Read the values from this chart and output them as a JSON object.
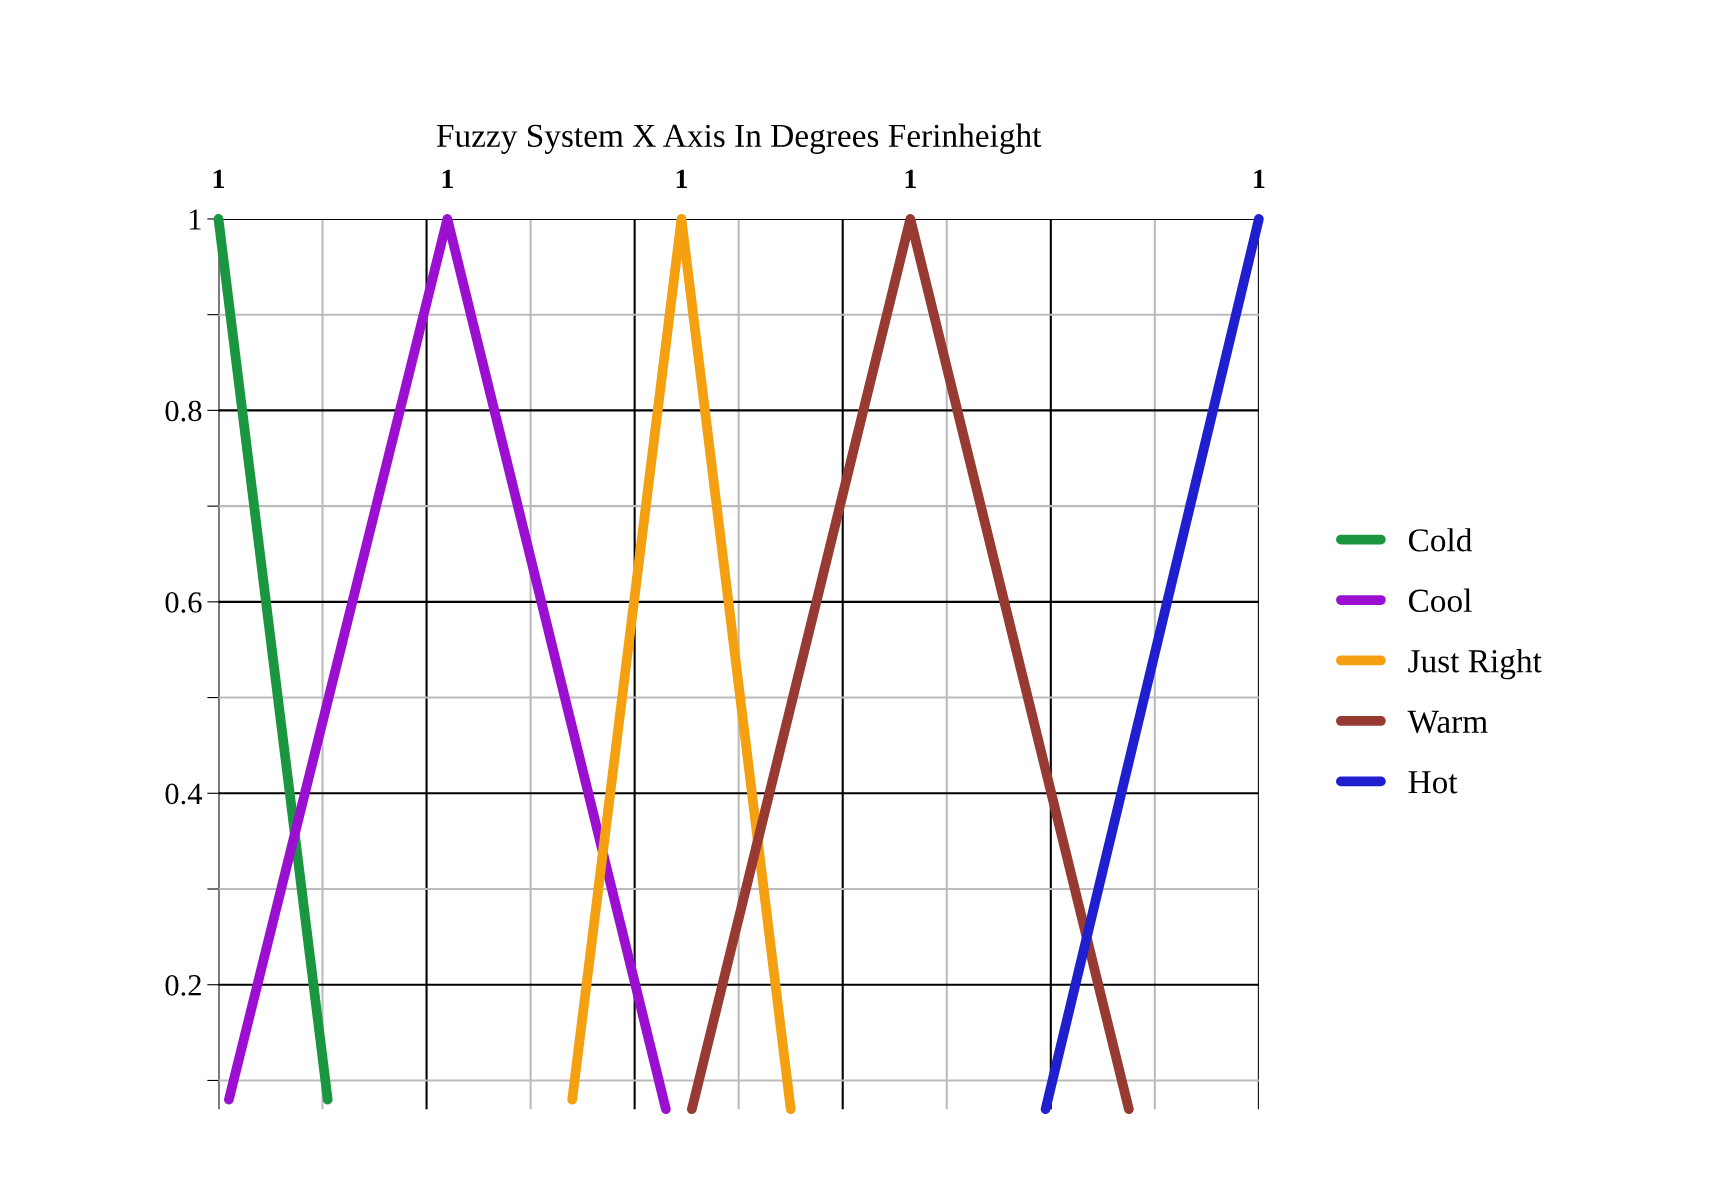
{
  "chart_data": {
    "type": "line",
    "title": "Fuzzy System X Axis In Degrees Ferinheight",
    "categories": [
      null,
      null,
      null,
      null,
      null,
      null,
      null,
      null,
      null,
      null,
      null,
      null,
      null,
      null,
      null,
      null,
      null,
      null,
      null,
      null,
      null,
      null,
      null,
      null,
      null,
      null,
      null,
      null,
      null,
      null,
      null,
      null,
      null,
      null,
      null,
      null,
      null,
      null,
      null,
      null,
      null,
      null,
      null,
      null,
      null,
      null,
      null,
      null,
      null,
      null,
      null,
      null,
      null,
      null,
      null,
      null,
      null,
      null,
      null,
      null,
      null,
      null,
      null,
      null,
      null,
      null,
      null,
      null,
      null,
      null,
      null,
      null,
      null,
      null,
      null,
      null,
      null,
      null,
      null,
      null,
      null,
      null,
      null,
      null,
      null,
      null,
      null,
      null,
      null,
      null,
      null,
      null,
      null,
      null,
      null,
      null,
      null,
      null,
      null,
      null,
      null,
      null,
      null,
      null,
      null,
      null,
      null,
      null,
      null,
      null,
      null,
      null,
      null,
      null,
      null,
      null,
      null,
      null,
      null,
      null,
      null,
      null,
      null,
      null,
      null,
      null,
      null,
      null,
      null,
      null,
      null,
      null,
      null,
      null,
      null,
      null,
      null,
      null,
      null,
      null,
      null,
      null,
      null,
      null,
      null,
      null,
      null,
      null,
      null,
      null,
      null,
      null,
      null,
      null,
      null,
      null,
      null,
      null,
      null,
      null,
      null,
      null,
      null,
      null,
      null,
      null,
      null,
      null,
      null,
      null,
      null,
      null,
      null,
      null,
      null,
      null,
      null,
      null,
      null,
      null,
      null,
      null,
      null,
      null,
      null,
      null,
      null,
      null,
      null,
      null,
      null,
      null,
      null,
      null,
      null,
      null,
      null,
      null,
      null,
      null,
      null
    ],
    "ylim": [
      0.07,
      1
    ],
    "yticks": [
      {
        "value": 0.1,
        "label": null
      },
      0.2,
      {
        "value": 0.3,
        "label": null
      },
      0.4,
      {
        "value": 0.5,
        "label": null
      },
      0.6,
      {
        "value": 0.7,
        "label": null
      },
      0.8,
      {
        "value": 0.9,
        "label": null
      },
      1
    ],
    "grid": true,
    "legend": "right",
    "marker": "none",
    "line_style": "solid",
    "series": [
      {
        "name": "Cold",
        "color": "#1a9641",
        "values": [
          1,
          null,
          null,
          null,
          null,
          null,
          null,
          null,
          null,
          null,
          null,
          null,
          null,
          null,
          null,
          null,
          null,
          null,
          null,
          null,
          null,
          0.08,
          null,
          null,
          null,
          null,
          null,
          null,
          null,
          null,
          null,
          null,
          null,
          null,
          null,
          null,
          null,
          null,
          null,
          null,
          null,
          null,
          null,
          null,
          null,
          null,
          null,
          null,
          null,
          null,
          null,
          null,
          null,
          null,
          null,
          null,
          null,
          null,
          null,
          null,
          null,
          null,
          null,
          null,
          null,
          null,
          null,
          null,
          null,
          null,
          null,
          null,
          null,
          null,
          null,
          null,
          null,
          null,
          null,
          null,
          null,
          null,
          null,
          null,
          null,
          null,
          null,
          null,
          null,
          null,
          null,
          null,
          null,
          null,
          null,
          null,
          null,
          null,
          null,
          null,
          null,
          null,
          null,
          null,
          null,
          null,
          null,
          null,
          null,
          null,
          null,
          null,
          null,
          null,
          null,
          null,
          null,
          null,
          null,
          null,
          null,
          null,
          null,
          null,
          null,
          null,
          null,
          null,
          null,
          null,
          null,
          null,
          null,
          null,
          null,
          null,
          null,
          null,
          null,
          null,
          null,
          null,
          null,
          null,
          null,
          null,
          null,
          null,
          null,
          null,
          null,
          null,
          null,
          null,
          null,
          null,
          null,
          null,
          null,
          null,
          null,
          null,
          null,
          null,
          null,
          null,
          null,
          null,
          null,
          null,
          null,
          null,
          null,
          null,
          null,
          null,
          null,
          null,
          null,
          null,
          null,
          null,
          null,
          null,
          null,
          null,
          null,
          null,
          null,
          null,
          null,
          null,
          null,
          null,
          null,
          null,
          null,
          null,
          null,
          null,
          null
        ],
        "value_labels": [
          "1",
          null,
          null,
          null,
          null,
          null,
          null,
          null,
          null,
          null,
          null,
          null,
          null,
          null,
          null,
          null,
          null,
          null,
          null,
          null,
          null,
          null,
          null,
          null,
          null,
          null,
          null,
          null,
          null,
          null,
          null,
          null,
          null,
          null,
          null,
          null,
          null,
          null,
          null,
          null,
          null,
          null,
          null,
          null,
          null,
          null,
          null,
          null,
          null,
          null,
          null,
          null,
          null,
          null,
          null,
          null,
          null,
          null,
          null,
          null,
          null,
          null,
          null,
          null,
          null,
          null,
          null,
          null,
          null,
          null,
          null,
          null,
          null,
          null,
          null,
          null,
          null,
          null,
          null,
          null,
          null,
          null,
          null,
          null,
          null,
          null,
          null,
          null,
          null,
          null,
          null,
          null,
          null,
          null,
          null,
          null,
          null,
          null,
          null,
          null,
          null,
          null,
          null,
          null,
          null,
          null,
          null,
          null,
          null,
          null,
          null,
          null,
          null,
          null,
          null,
          null,
          null,
          null,
          null,
          null,
          null,
          null,
          null,
          null,
          null,
          null,
          null,
          null,
          null,
          null,
          null,
          null,
          null,
          null,
          null,
          null,
          null,
          null,
          null,
          null,
          null,
          null,
          null,
          null,
          null,
          null,
          null,
          null,
          null,
          null,
          null,
          null,
          null,
          null,
          null,
          null,
          null,
          null,
          null,
          null,
          null,
          null,
          null,
          null,
          null,
          null,
          null,
          null,
          null,
          null,
          null,
          null,
          null,
          null,
          null,
          null,
          null,
          null,
          null,
          null,
          null,
          null,
          null,
          null,
          null,
          null,
          null,
          null,
          null,
          null,
          null,
          null,
          null,
          null,
          null,
          null,
          null,
          null,
          null,
          null,
          null
        ]
      },
      {
        "name": "Cool",
        "color": "#9b10d0",
        "values": [
          null,
          null,
          0.08,
          null,
          null,
          null,
          null,
          null,
          null,
          null,
          null,
          null,
          null,
          null,
          null,
          null,
          null,
          null,
          null,
          null,
          null,
          null,
          null,
          null,
          null,
          null,
          null,
          null,
          null,
          null,
          null,
          null,
          null,
          null,
          null,
          null,
          null,
          null,
          null,
          null,
          null,
          null,
          null,
          null,
          1,
          null,
          null,
          null,
          null,
          null,
          null,
          null,
          null,
          null,
          null,
          null,
          null,
          null,
          null,
          null,
          null,
          null,
          null,
          null,
          null,
          null,
          null,
          null,
          null,
          null,
          null,
          null,
          null,
          null,
          null,
          null,
          null,
          null,
          null,
          null,
          null,
          null,
          null,
          null,
          null,
          null,
          0.07,
          null,
          null,
          null,
          null,
          null,
          null,
          null,
          null,
          null,
          null,
          null,
          null,
          null,
          null,
          null,
          null,
          null,
          null,
          null,
          null,
          null,
          null,
          null,
          null,
          null,
          null,
          null,
          null,
          null,
          null,
          null,
          null,
          null,
          null,
          null,
          null,
          null,
          null,
          null,
          null,
          null,
          null,
          null,
          null,
          null,
          null,
          null,
          null,
          null,
          null,
          null,
          null,
          null,
          null,
          null,
          null,
          null,
          null,
          null,
          null,
          null,
          null,
          null,
          null,
          null,
          null,
          null,
          null,
          null,
          null,
          null,
          null,
          null,
          null,
          null,
          null,
          null,
          null,
          null,
          null,
          null,
          null,
          null,
          null,
          null,
          null,
          null,
          null,
          null,
          null,
          null,
          null,
          null,
          null,
          null,
          null,
          null,
          null,
          null,
          null,
          null,
          null,
          null,
          null,
          null,
          null,
          null,
          null,
          null,
          null,
          null,
          null,
          null,
          null
        ],
        "value_labels": [
          null,
          null,
          null,
          null,
          null,
          null,
          null,
          null,
          null,
          null,
          null,
          null,
          null,
          null,
          null,
          null,
          null,
          null,
          null,
          null,
          null,
          null,
          null,
          null,
          null,
          null,
          null,
          null,
          null,
          null,
          null,
          null,
          null,
          null,
          null,
          null,
          null,
          null,
          null,
          null,
          null,
          null,
          null,
          null,
          "1",
          null,
          null,
          null,
          null,
          null,
          null,
          null,
          null,
          null,
          null,
          null,
          null,
          null,
          null,
          null,
          null,
          null,
          null,
          null,
          null,
          null,
          null,
          null,
          null,
          null,
          null,
          null,
          null,
          null,
          null,
          null,
          null,
          null,
          null,
          null,
          null,
          null,
          null,
          null,
          null,
          null,
          null,
          null,
          null,
          null,
          null,
          null,
          null,
          null,
          null,
          null,
          null,
          null,
          null,
          null,
          null,
          null,
          null,
          null,
          null,
          null,
          null,
          null,
          null,
          null,
          null,
          null,
          null,
          null,
          null,
          null,
          null,
          null,
          null,
          null,
          null,
          null,
          null,
          null,
          null,
          null,
          null,
          null,
          null,
          null,
          null,
          null,
          null,
          null,
          null,
          null,
          null,
          null,
          null,
          null,
          null,
          null,
          null,
          null,
          null,
          null,
          null,
          null,
          null,
          null,
          null,
          null,
          null,
          null,
          null,
          null,
          null,
          null,
          null,
          null,
          null,
          null,
          null,
          null,
          null,
          null,
          null,
          null,
          null,
          null,
          null,
          null,
          null,
          null,
          null,
          null,
          null,
          null,
          null,
          null,
          null,
          null,
          null,
          null,
          null,
          null,
          null,
          null,
          null,
          null,
          null,
          null,
          null,
          null,
          null,
          null,
          null,
          null,
          null,
          null,
          null
        ]
      },
      {
        "name": "Just Right",
        "color": "#f5a011",
        "values": [
          null,
          null,
          null,
          null,
          null,
          null,
          null,
          null,
          null,
          null,
          null,
          null,
          null,
          null,
          null,
          null,
          null,
          null,
          null,
          null,
          null,
          null,
          null,
          null,
          null,
          null,
          null,
          null,
          null,
          null,
          null,
          null,
          null,
          null,
          null,
          null,
          null,
          null,
          null,
          null,
          null,
          null,
          null,
          null,
          null,
          null,
          null,
          null,
          null,
          null,
          null,
          null,
          null,
          null,
          null,
          null,
          null,
          null,
          null,
          null,
          null,
          null,
          null,
          null,
          null,
          null,
          null,
          null,
          0.08,
          null,
          null,
          null,
          null,
          null,
          null,
          null,
          null,
          null,
          null,
          null,
          null,
          null,
          null,
          null,
          null,
          null,
          null,
          null,
          null,
          1,
          null,
          null,
          null,
          null,
          null,
          null,
          null,
          null,
          null,
          null,
          null,
          null,
          null,
          null,
          null,
          null,
          null,
          null,
          null,
          null,
          0.07,
          null,
          null,
          null,
          null,
          null,
          null,
          null,
          null,
          null,
          null,
          null,
          null,
          null,
          null,
          null,
          null,
          null,
          null,
          null,
          null,
          null,
          null,
          null,
          null,
          null,
          null,
          null,
          null,
          null,
          null,
          null,
          null,
          null,
          null,
          null,
          null,
          null,
          null,
          null,
          null,
          null,
          null,
          null,
          null,
          null,
          null,
          null,
          null,
          null,
          null,
          null,
          null,
          null,
          null,
          null,
          null,
          null,
          null,
          null,
          null,
          null,
          null,
          null,
          null,
          null,
          null,
          null,
          null,
          null,
          null,
          null,
          null,
          null,
          null,
          null,
          null,
          null,
          null,
          null,
          null,
          null,
          null,
          null,
          null,
          null,
          null,
          null,
          null,
          null,
          null
        ],
        "value_labels": [
          null,
          null,
          null,
          null,
          null,
          null,
          null,
          null,
          null,
          null,
          null,
          null,
          null,
          null,
          null,
          null,
          null,
          null,
          null,
          null,
          null,
          null,
          null,
          null,
          null,
          null,
          null,
          null,
          null,
          null,
          null,
          null,
          null,
          null,
          null,
          null,
          null,
          null,
          null,
          null,
          null,
          null,
          null,
          null,
          null,
          null,
          null,
          null,
          null,
          null,
          null,
          null,
          null,
          null,
          null,
          null,
          null,
          null,
          null,
          null,
          null,
          null,
          null,
          null,
          null,
          null,
          null,
          null,
          null,
          null,
          null,
          null,
          null,
          null,
          null,
          null,
          null,
          null,
          null,
          null,
          null,
          null,
          null,
          null,
          null,
          null,
          null,
          null,
          null,
          "1",
          null,
          null,
          null,
          null,
          null,
          null,
          null,
          null,
          null,
          null,
          null,
          null,
          null,
          null,
          null,
          null,
          null,
          null,
          null,
          null,
          null,
          null,
          null,
          null,
          null,
          null,
          null,
          null,
          null,
          null,
          null,
          null,
          null,
          null,
          null,
          null,
          null,
          null,
          null,
          null,
          null,
          null,
          null,
          null,
          null,
          null,
          null,
          null,
          null,
          null,
          null,
          null,
          null,
          null,
          null,
          null,
          null,
          null,
          null,
          null,
          null,
          null,
          null,
          null,
          null,
          null,
          null,
          null,
          null,
          null,
          null,
          null,
          null,
          null,
          null,
          null,
          null,
          null,
          null,
          null,
          null,
          null,
          null,
          null,
          null,
          null,
          null,
          null,
          null,
          null,
          null,
          null,
          null,
          null,
          null,
          null,
          null,
          null,
          null,
          null,
          null,
          null,
          null,
          null,
          null,
          null,
          null,
          null,
          null,
          null,
          null
        ]
      },
      {
        "name": "Warm",
        "color": "#963a32",
        "values": [
          null,
          null,
          null,
          null,
          null,
          null,
          null,
          null,
          null,
          null,
          null,
          null,
          null,
          null,
          null,
          null,
          null,
          null,
          null,
          null,
          null,
          null,
          null,
          null,
          null,
          null,
          null,
          null,
          null,
          null,
          null,
          null,
          null,
          null,
          null,
          null,
          null,
          null,
          null,
          null,
          null,
          null,
          null,
          null,
          null,
          null,
          null,
          null,
          null,
          null,
          null,
          null,
          null,
          null,
          null,
          null,
          null,
          null,
          null,
          null,
          null,
          null,
          null,
          null,
          null,
          null,
          null,
          null,
          null,
          null,
          null,
          null,
          null,
          null,
          null,
          null,
          null,
          null,
          null,
          null,
          null,
          null,
          null,
          null,
          null,
          null,
          null,
          null,
          null,
          null,
          null,
          0.07,
          null,
          null,
          null,
          null,
          null,
          null,
          null,
          null,
          null,
          null,
          null,
          null,
          null,
          null,
          null,
          null,
          null,
          null,
          null,
          null,
          null,
          null,
          null,
          null,
          null,
          null,
          null,
          null,
          null,
          null,
          null,
          null,
          null,
          null,
          null,
          null,
          null,
          null,
          null,
          null,
          null,
          1,
          null,
          null,
          null,
          null,
          null,
          null,
          null,
          null,
          null,
          null,
          null,
          null,
          null,
          null,
          null,
          null,
          null,
          null,
          null,
          null,
          null,
          null,
          null,
          null,
          null,
          null,
          null,
          null,
          null,
          null,
          null,
          null,
          null,
          null,
          null,
          null,
          null,
          null,
          null,
          null,
          null,
          0.07,
          null,
          null,
          null,
          null,
          null,
          null,
          null,
          null,
          null,
          null,
          null,
          null,
          null,
          null,
          null,
          null,
          null,
          null,
          null,
          null,
          null,
          null,
          null,
          null,
          null
        ],
        "value_labels": [
          null,
          null,
          null,
          null,
          null,
          null,
          null,
          null,
          null,
          null,
          null,
          null,
          null,
          null,
          null,
          null,
          null,
          null,
          null,
          null,
          null,
          null,
          null,
          null,
          null,
          null,
          null,
          null,
          null,
          null,
          null,
          null,
          null,
          null,
          null,
          null,
          null,
          null,
          null,
          null,
          null,
          null,
          null,
          null,
          null,
          null,
          null,
          null,
          null,
          null,
          null,
          null,
          null,
          null,
          null,
          null,
          null,
          null,
          null,
          null,
          null,
          null,
          null,
          null,
          null,
          null,
          null,
          null,
          null,
          null,
          null,
          null,
          null,
          null,
          null,
          null,
          null,
          null,
          null,
          null,
          null,
          null,
          null,
          null,
          null,
          null,
          null,
          null,
          null,
          null,
          null,
          null,
          null,
          null,
          null,
          null,
          null,
          null,
          null,
          null,
          null,
          null,
          null,
          null,
          null,
          null,
          null,
          null,
          null,
          null,
          null,
          null,
          null,
          null,
          null,
          null,
          null,
          null,
          null,
          null,
          null,
          null,
          null,
          null,
          null,
          null,
          null,
          null,
          null,
          null,
          null,
          null,
          null,
          "1",
          null,
          null,
          null,
          null,
          null,
          null,
          null,
          null,
          null,
          null,
          null,
          null,
          null,
          null,
          null,
          null,
          null,
          null,
          null,
          null,
          null,
          null,
          null,
          null,
          null,
          null,
          null,
          null,
          null,
          null,
          null,
          null,
          null,
          null,
          null,
          null,
          null,
          null,
          null,
          null,
          null,
          null,
          null,
          null,
          null,
          null,
          null,
          null,
          null,
          null,
          null,
          null,
          null,
          null,
          null,
          null,
          null,
          null,
          null,
          null,
          null,
          null,
          null,
          null,
          null,
          null,
          null
        ]
      },
      {
        "name": "Hot",
        "color": "#1f1fd0",
        "values": [
          null,
          null,
          null,
          null,
          null,
          null,
          null,
          null,
          null,
          null,
          null,
          null,
          null,
          null,
          null,
          null,
          null,
          null,
          null,
          null,
          null,
          null,
          null,
          null,
          null,
          null,
          null,
          null,
          null,
          null,
          null,
          null,
          null,
          null,
          null,
          null,
          null,
          null,
          null,
          null,
          null,
          null,
          null,
          null,
          null,
          null,
          null,
          null,
          null,
          null,
          null,
          null,
          null,
          null,
          null,
          null,
          null,
          null,
          null,
          null,
          null,
          null,
          null,
          null,
          null,
          null,
          null,
          null,
          null,
          null,
          null,
          null,
          null,
          null,
          null,
          null,
          null,
          null,
          null,
          null,
          null,
          null,
          null,
          null,
          null,
          null,
          null,
          null,
          null,
          null,
          null,
          null,
          null,
          null,
          null,
          null,
          null,
          null,
          null,
          null,
          null,
          null,
          null,
          null,
          null,
          null,
          null,
          null,
          null,
          null,
          null,
          null,
          null,
          null,
          null,
          null,
          null,
          null,
          null,
          null,
          null,
          null,
          null,
          null,
          null,
          null,
          null,
          null,
          null,
          null,
          null,
          null,
          null,
          null,
          null,
          null,
          null,
          null,
          null,
          null,
          null,
          null,
          null,
          null,
          null,
          null,
          null,
          null,
          null,
          null,
          null,
          null,
          null,
          null,
          null,
          null,
          null,
          null,
          null,
          0.07,
          null,
          null,
          null,
          null,
          null,
          null,
          null,
          null,
          null,
          null,
          null,
          null,
          null,
          null,
          null,
          null,
          null,
          null,
          null,
          null,
          null,
          null,
          null,
          null,
          null,
          null,
          null,
          null,
          null,
          null,
          null,
          null,
          null,
          null,
          null,
          null,
          null,
          null,
          null,
          null,
          1
        ],
        "value_labels": [
          null,
          null,
          null,
          null,
          null,
          null,
          null,
          null,
          null,
          null,
          null,
          null,
          null,
          null,
          null,
          null,
          null,
          null,
          null,
          null,
          null,
          null,
          null,
          null,
          null,
          null,
          null,
          null,
          null,
          null,
          null,
          null,
          null,
          null,
          null,
          null,
          null,
          null,
          null,
          null,
          null,
          null,
          null,
          null,
          null,
          null,
          null,
          null,
          null,
          null,
          null,
          null,
          null,
          null,
          null,
          null,
          null,
          null,
          null,
          null,
          null,
          null,
          null,
          null,
          null,
          null,
          null,
          null,
          null,
          null,
          null,
          null,
          null,
          null,
          null,
          null,
          null,
          null,
          null,
          null,
          null,
          null,
          null,
          null,
          null,
          null,
          null,
          null,
          null,
          null,
          null,
          null,
          null,
          null,
          null,
          null,
          null,
          null,
          null,
          null,
          null,
          null,
          null,
          null,
          null,
          null,
          null,
          null,
          null,
          null,
          null,
          null,
          null,
          null,
          null,
          null,
          null,
          null,
          null,
          null,
          null,
          null,
          null,
          null,
          null,
          null,
          null,
          null,
          null,
          null,
          null,
          null,
          null,
          null,
          null,
          null,
          null,
          null,
          null,
          null,
          null,
          null,
          null,
          null,
          null,
          null,
          null,
          null,
          null,
          null,
          null,
          null,
          null,
          null,
          null,
          null,
          null,
          null,
          null,
          null,
          null,
          null,
          null,
          null,
          null,
          null,
          null,
          null,
          null,
          null,
          null,
          null,
          null,
          null,
          null,
          null,
          null,
          null,
          null,
          null,
          null,
          null,
          null,
          null,
          null,
          null,
          null,
          null,
          null,
          null,
          null,
          null,
          null,
          null,
          null,
          null,
          null,
          null,
          null,
          null,
          "1"
        ]
      }
    ]
  }
}
